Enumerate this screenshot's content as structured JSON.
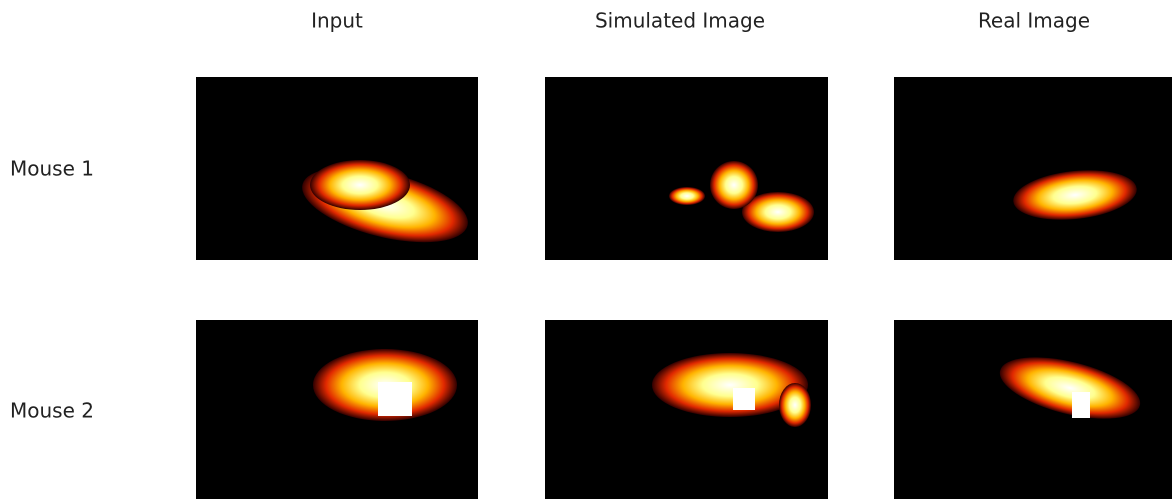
{
  "columns": [
    "Input",
    "Simulated Image",
    "Real Image"
  ],
  "rows": [
    "Mouse 1",
    "Mouse 2"
  ]
}
